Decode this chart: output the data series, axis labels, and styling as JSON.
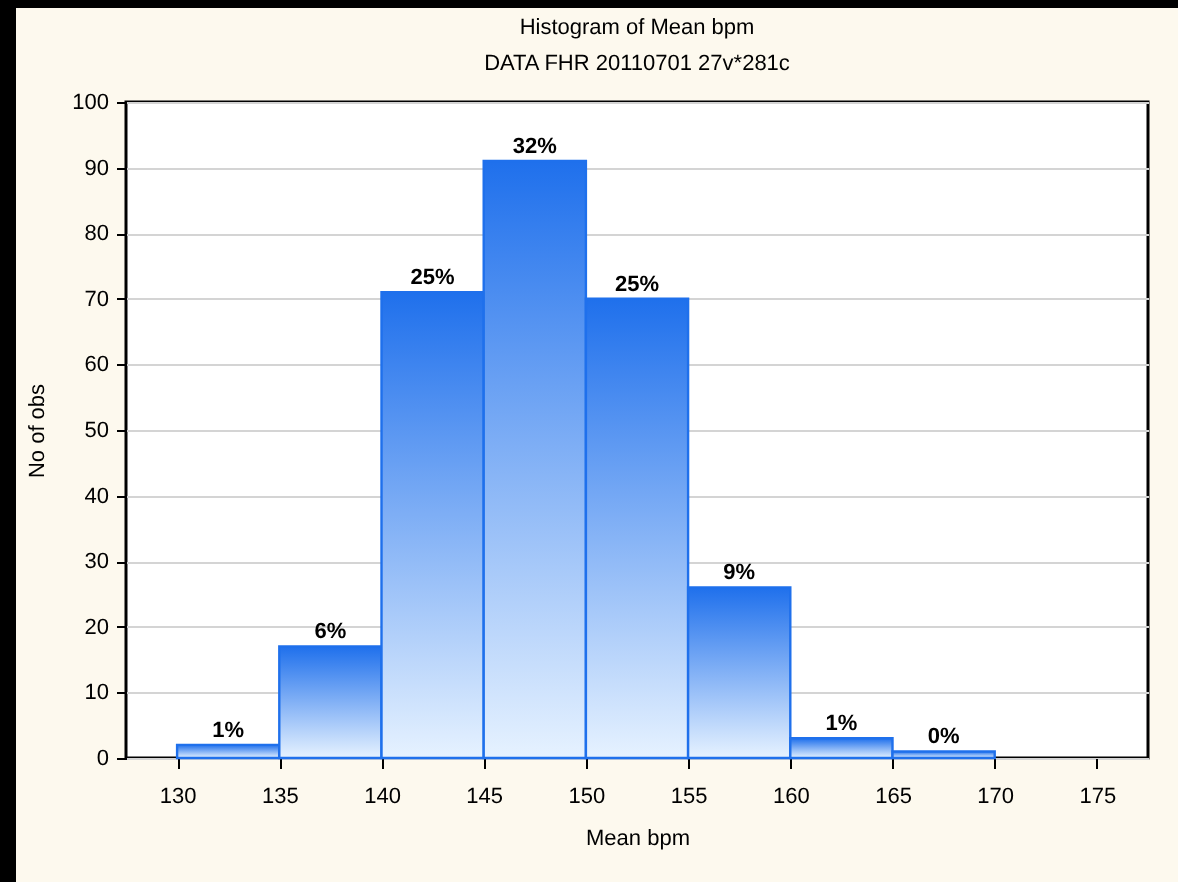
{
  "chart_data": {
    "type": "histogram",
    "title": "Histogram of Mean bpm",
    "subtitle": "DATA FHR 20110701 27v*281c",
    "xlabel": "Mean bpm",
    "ylabel": "No of obs",
    "bins": [
      130,
      135,
      140,
      145,
      150,
      155,
      160,
      165,
      170
    ],
    "values": [
      2,
      17,
      71,
      91,
      70,
      26,
      3,
      1
    ],
    "annotations": [
      {
        "text": "1%",
        "x": 132.5,
        "y": 2
      },
      {
        "text": "6%",
        "x": 137.5,
        "y": 17
      },
      {
        "text": "25%",
        "x": 142.5,
        "y": 71
      },
      {
        "text": "32%",
        "x": 147.5,
        "y": 91
      },
      {
        "text": "25%",
        "x": 152.5,
        "y": 70
      },
      {
        "text": "9%",
        "x": 157.5,
        "y": 26
      },
      {
        "text": "1%",
        "x": 162.5,
        "y": 3
      },
      {
        "text": "0%",
        "x": 167.5,
        "y": 1
      }
    ],
    "color": "#1f70ec",
    "xlim": [
      127.5,
      177.5
    ],
    "xticks": [
      130,
      135,
      140,
      145,
      150,
      155,
      160,
      165,
      170,
      175
    ],
    "ylim": [
      0,
      100
    ],
    "yticks": [
      0,
      10,
      20,
      30,
      40,
      50,
      60,
      70,
      80,
      90,
      100
    ],
    "grid": "y"
  }
}
